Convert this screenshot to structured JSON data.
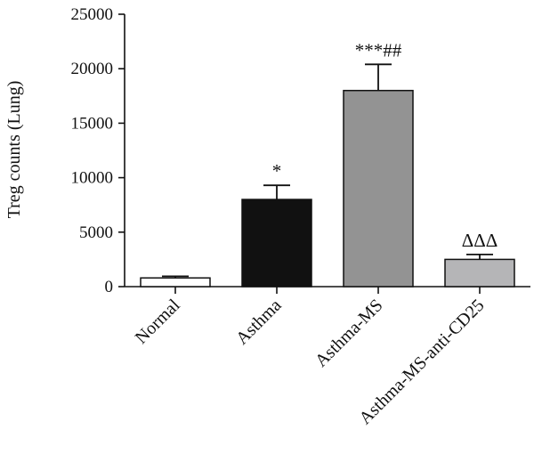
{
  "chart_data": {
    "type": "bar",
    "title": "",
    "xlabel": "",
    "ylabel": "Treg counts (Lung)",
    "ylim": [
      0,
      25000
    ],
    "yticks": [
      0,
      5000,
      10000,
      15000,
      20000,
      25000
    ],
    "grid": false,
    "categories": [
      "Normal",
      "Asthma",
      "Asthma-MS",
      "Asthma-MS-anti-CD25"
    ],
    "values": [
      800,
      8000,
      18000,
      2500
    ],
    "errors": [
      150,
      1300,
      2400,
      450
    ],
    "annotations": [
      "",
      "*",
      "***##",
      "ΔΔΔ"
    ],
    "colors": [
      "#ffffff",
      "#111111",
      "#939393",
      "#b5b5b7"
    ]
  }
}
